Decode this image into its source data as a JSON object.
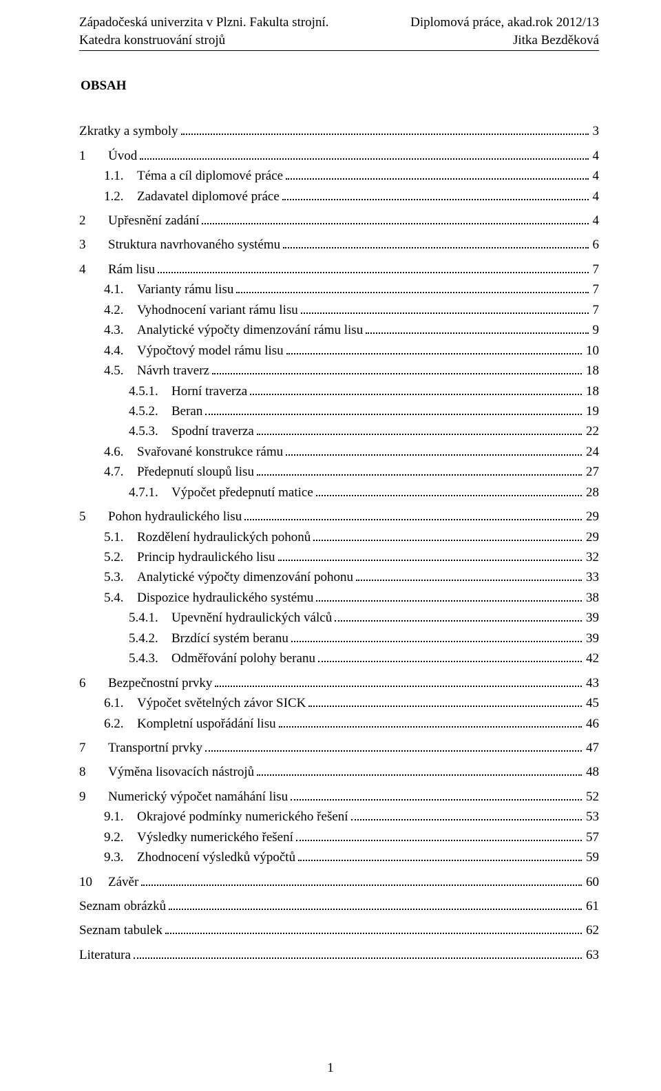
{
  "header": {
    "top_left": "Západočeská univerzita v Plzni. Fakulta strojní.",
    "top_right": "Diplomová práce, akad.rok 2012/13",
    "bottom_left": "Katedra konstruování strojů",
    "bottom_right": "Jitka Bezděková"
  },
  "title": "OBSAH",
  "page_number": "1",
  "toc": [
    {
      "level": 0,
      "num": "",
      "title": "Zkratky a symboly",
      "page": "3",
      "nonum": true
    },
    {
      "level": 0,
      "num": "1",
      "title": "Úvod",
      "page": "4"
    },
    {
      "level": 1,
      "num": "1.1.",
      "title": "Téma a cíl diplomové práce",
      "page": "4"
    },
    {
      "level": 1,
      "num": "1.2.",
      "title": "Zadavatel diplomové práce",
      "page": "4"
    },
    {
      "level": 0,
      "num": "2",
      "title": "Upřesnění zadání",
      "page": "4"
    },
    {
      "level": 0,
      "num": "3",
      "title": "Struktura navrhovaného systému",
      "page": "6"
    },
    {
      "level": 0,
      "num": "4",
      "title": "Rám lisu",
      "page": "7"
    },
    {
      "level": 1,
      "num": "4.1.",
      "title": "Varianty rámu lisu",
      "page": "7"
    },
    {
      "level": 1,
      "num": "4.2.",
      "title": "Vyhodnocení variant rámu lisu",
      "page": "7"
    },
    {
      "level": 1,
      "num": "4.3.",
      "title": "Analytické výpočty dimenzování rámu lisu",
      "page": "9"
    },
    {
      "level": 1,
      "num": "4.4.",
      "title": "Výpočtový model rámu lisu",
      "page": "10"
    },
    {
      "level": 1,
      "num": "4.5.",
      "title": "Návrh traverz",
      "page": "18"
    },
    {
      "level": 2,
      "num": "4.5.1.",
      "title": "Horní traverza",
      "page": "18"
    },
    {
      "level": 2,
      "num": "4.5.2.",
      "title": "Beran",
      "page": "19"
    },
    {
      "level": 2,
      "num": "4.5.3.",
      "title": "Spodní traverza",
      "page": "22"
    },
    {
      "level": 1,
      "num": "4.6.",
      "title": "Svařované konstrukce rámu",
      "page": "24"
    },
    {
      "level": 1,
      "num": "4.7.",
      "title": "Předepnutí sloupů lisu",
      "page": "27"
    },
    {
      "level": 2,
      "num": "4.7.1.",
      "title": "Výpočet předepnutí matice",
      "page": "28"
    },
    {
      "level": 0,
      "num": "5",
      "title": "Pohon hydraulického lisu",
      "page": "29"
    },
    {
      "level": 1,
      "num": "5.1.",
      "title": "Rozdělení hydraulických pohonů",
      "page": "29"
    },
    {
      "level": 1,
      "num": "5.2.",
      "title": "Princip hydraulického lisu",
      "page": "32"
    },
    {
      "level": 1,
      "num": "5.3.",
      "title": "Analytické výpočty dimenzování pohonu",
      "page": "33"
    },
    {
      "level": 1,
      "num": "5.4.",
      "title": "Dispozice hydraulického systému",
      "page": "38"
    },
    {
      "level": 2,
      "num": "5.4.1.",
      "title": "Upevnění hydraulických válců",
      "page": "39"
    },
    {
      "level": 2,
      "num": "5.4.2.",
      "title": "Brzdící systém beranu",
      "page": "39"
    },
    {
      "level": 2,
      "num": "5.4.3.",
      "title": "Odměřování polohy beranu",
      "page": "42"
    },
    {
      "level": 0,
      "num": "6",
      "title": "Bezpečnostní prvky",
      "page": "43"
    },
    {
      "level": 1,
      "num": "6.1.",
      "title": "Výpočet světelných závor SICK",
      "page": "45"
    },
    {
      "level": 1,
      "num": "6.2.",
      "title": "Kompletní uspořádání lisu",
      "page": "46"
    },
    {
      "level": 0,
      "num": "7",
      "title": "Transportní prvky",
      "page": "47"
    },
    {
      "level": 0,
      "num": "8",
      "title": "Výměna lisovacích nástrojů",
      "page": "48"
    },
    {
      "level": 0,
      "num": "9",
      "title": "Numerický výpočet namáhání lisu",
      "page": "52"
    },
    {
      "level": 1,
      "num": "9.1.",
      "title": "Okrajové podmínky numerického řešení",
      "page": "53"
    },
    {
      "level": 1,
      "num": "9.2.",
      "title": "Výsledky numerického řešení",
      "page": "57"
    },
    {
      "level": 1,
      "num": "9.3.",
      "title": "Zhodnocení výsledků výpočtů",
      "page": "59"
    },
    {
      "level": 0,
      "num": "10",
      "title": "Závěr",
      "page": "60"
    },
    {
      "level": 0,
      "num": "",
      "title": "Seznam obrázků",
      "page": "61",
      "nonum": true
    },
    {
      "level": 0,
      "num": "",
      "title": "Seznam tabulek",
      "page": "62",
      "nonum": true
    },
    {
      "level": 0,
      "num": "",
      "title": "Literatura",
      "page": "63",
      "nonum": true
    }
  ]
}
